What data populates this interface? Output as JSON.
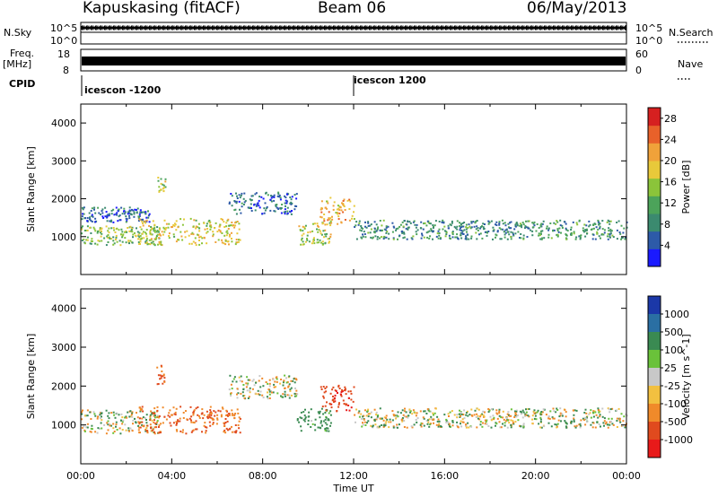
{
  "header": {
    "site": "Kapuskasing (fitACF)",
    "beam": "Beam 06",
    "date": "06/May/2013"
  },
  "top_panels": {
    "nsky_label": "N.Sky",
    "nsky_ticks": [
      "10^5",
      "10^0"
    ],
    "nsearch_label": "N.Search",
    "nsearch_ticks": [
      "10^5",
      "10^0"
    ],
    "freq_label": "Freq.",
    "freq_unit": "[MHz]",
    "freq_ticks": [
      "18",
      "8"
    ],
    "nave_label": "Nave",
    "nave_ticks": [
      "60",
      "0"
    ],
    "cpid_label": "CPID",
    "cpid_segments": [
      {
        "label": "icescon -1200",
        "start_hour": 0
      },
      {
        "label": "icescon 1200",
        "start_hour": 12
      }
    ]
  },
  "chart_data": [
    {
      "type": "heatmap",
      "title": "Power",
      "ylabel": "Slant Range [km]",
      "xlabel": "",
      "xlim": [
        0,
        24
      ],
      "ylim": [
        0,
        4500
      ],
      "yticks": [
        1000,
        2000,
        3000,
        4000
      ],
      "colorbar": {
        "label": "Power [dB]",
        "ticks": [
          4,
          8,
          12,
          16,
          20,
          24,
          28
        ],
        "range": [
          0,
          30
        ]
      },
      "scatter_bands": [
        {
          "start_hour": 0.0,
          "end_hour": 3.5,
          "range_km": 1050,
          "spread_km": 250,
          "power_db": 14
        },
        {
          "start_hour": 0.0,
          "end_hour": 3.0,
          "range_km": 1600,
          "spread_km": 200,
          "power_db": 6
        },
        {
          "start_hour": 2.5,
          "end_hour": 7.0,
          "range_km": 1150,
          "spread_km": 350,
          "power_db": 18
        },
        {
          "start_hour": 3.3,
          "end_hour": 3.7,
          "range_km": 2400,
          "spread_km": 200,
          "power_db": 16
        },
        {
          "start_hour": 6.5,
          "end_hour": 9.5,
          "range_km": 1900,
          "spread_km": 300,
          "power_db": 6
        },
        {
          "start_hour": 9.5,
          "end_hour": 11.0,
          "range_km": 1100,
          "spread_km": 300,
          "power_db": 16
        },
        {
          "start_hour": 10.5,
          "end_hour": 12.0,
          "range_km": 1700,
          "spread_km": 350,
          "power_db": 20
        },
        {
          "start_hour": 12.0,
          "end_hour": 24.0,
          "range_km": 1200,
          "spread_km": 250,
          "power_db": 9
        }
      ]
    },
    {
      "type": "heatmap",
      "title": "Velocity",
      "ylabel": "Slant Range [km]",
      "xlabel": "Time UT",
      "xlim": [
        0,
        24
      ],
      "ylim": [
        0,
        4500
      ],
      "yticks": [
        1000,
        2000,
        3000,
        4000
      ],
      "xticks": [
        "00:00",
        "04:00",
        "08:00",
        "12:00",
        "16:00",
        "20:00",
        "00:00"
      ],
      "colorbar": {
        "label": "Velocity [m s^-1]",
        "ticks": [
          1000,
          500,
          100,
          25,
          -25,
          -100,
          -500,
          -1000
        ]
      },
      "scatter_bands": [
        {
          "start_hour": 0.0,
          "end_hour": 3.5,
          "range_km": 1100,
          "spread_km": 300,
          "velocity_ms": 0
        },
        {
          "start_hour": 2.5,
          "end_hour": 7.0,
          "range_km": 1150,
          "spread_km": 350,
          "velocity_ms": -300
        },
        {
          "start_hour": 3.3,
          "end_hour": 3.7,
          "range_km": 2300,
          "spread_km": 250,
          "velocity_ms": -400
        },
        {
          "start_hour": 6.5,
          "end_hour": 9.5,
          "range_km": 2000,
          "spread_km": 300,
          "velocity_ms": 0
        },
        {
          "start_hour": 9.5,
          "end_hour": 11.0,
          "range_km": 1150,
          "spread_km": 300,
          "velocity_ms": 150
        },
        {
          "start_hour": 10.5,
          "end_hour": 12.0,
          "range_km": 1700,
          "spread_km": 350,
          "velocity_ms": -600
        },
        {
          "start_hour": 12.0,
          "end_hour": 24.0,
          "range_km": 1200,
          "spread_km": 250,
          "velocity_ms": 0
        }
      ]
    }
  ],
  "colors": {
    "power_scale": [
      "#1a1aff",
      "#2d5aa8",
      "#3b8a6f",
      "#4ca35a",
      "#8bc43a",
      "#e8c93a",
      "#f0a23a",
      "#e8612a",
      "#d62020"
    ],
    "velocity_scale": [
      "#1b38a8",
      "#2a6fa3",
      "#3a8a52",
      "#6ac23a",
      "#c8c8c8",
      "#f2c040",
      "#f08a2a",
      "#e04a1e",
      "#e81a1a"
    ]
  }
}
